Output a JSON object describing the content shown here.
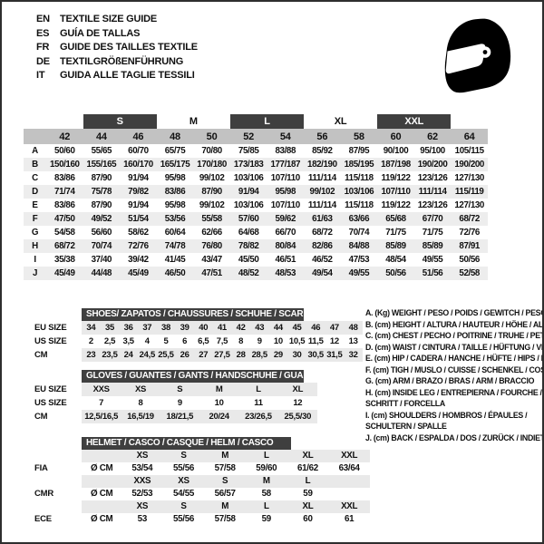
{
  "header": {
    "languages": [
      {
        "code": "EN",
        "text": "TEXTILE SIZE GUIDE"
      },
      {
        "code": "ES",
        "text": "GUÍA DE TALLAS"
      },
      {
        "code": "FR",
        "text": "GUIDE DES TAILLES TEXTILE"
      },
      {
        "code": "DE",
        "text": "TEXTILGRÖßENFÜHRUNG"
      },
      {
        "code": "IT",
        "text": "GUIDA ALLE TAGLIE TESSILI"
      }
    ],
    "icon": "racing-helmet"
  },
  "colors": {
    "bar_bg": "#3f3f3f",
    "bar_text": "#ffffff",
    "size_row_bg": "#c2c2c2",
    "stripe_bg": "#ededed",
    "shade_bg": "#e9e9e9",
    "text": "#111111",
    "border": "#2e2e2e"
  },
  "main_table": {
    "group_headers": [
      {
        "label": "",
        "dark": false,
        "span": 2
      },
      {
        "label": "S",
        "dark": true,
        "span": 2
      },
      {
        "label": "M",
        "dark": false,
        "span": 2
      },
      {
        "label": "L",
        "dark": true,
        "span": 2
      },
      {
        "label": "XL",
        "dark": false,
        "span": 2
      },
      {
        "label": "XXL",
        "dark": true,
        "span": 2
      },
      {
        "label": "",
        "dark": false,
        "span": 1
      }
    ],
    "sizes": [
      "42",
      "44",
      "46",
      "48",
      "50",
      "52",
      "54",
      "56",
      "58",
      "60",
      "62",
      "64"
    ],
    "rows": [
      {
        "label": "A",
        "values": [
          "50/60",
          "55/65",
          "60/70",
          "65/75",
          "70/80",
          "75/85",
          "83/88",
          "85/92",
          "87/95",
          "90/100",
          "95/100",
          "105/115"
        ]
      },
      {
        "label": "B",
        "values": [
          "150/160",
          "155/165",
          "160/170",
          "165/175",
          "170/180",
          "173/183",
          "177/187",
          "182/190",
          "185/195",
          "187/198",
          "190/200",
          "190/200"
        ]
      },
      {
        "label": "C",
        "values": [
          "83/86",
          "87/90",
          "91/94",
          "95/98",
          "99/102",
          "103/106",
          "107/110",
          "111/114",
          "115/118",
          "119/122",
          "123/126",
          "127/130"
        ]
      },
      {
        "label": "D",
        "values": [
          "71/74",
          "75/78",
          "79/82",
          "83/86",
          "87/90",
          "91/94",
          "95/98",
          "99/102",
          "103/106",
          "107/110",
          "111/114",
          "115/119"
        ]
      },
      {
        "label": "E",
        "values": [
          "83/86",
          "87/90",
          "91/94",
          "95/98",
          "99/102",
          "103/106",
          "107/110",
          "111/114",
          "115/118",
          "119/122",
          "123/126",
          "127/130"
        ]
      },
      {
        "label": "F",
        "values": [
          "47/50",
          "49/52",
          "51/54",
          "53/56",
          "55/58",
          "57/60",
          "59/62",
          "61/63",
          "63/66",
          "65/68",
          "67/70",
          "68/72"
        ]
      },
      {
        "label": "G",
        "values": [
          "54/58",
          "56/60",
          "58/62",
          "60/64",
          "62/66",
          "64/68",
          "66/70",
          "68/72",
          "70/74",
          "71/75",
          "71/75",
          "72/76"
        ]
      },
      {
        "label": "H",
        "values": [
          "68/72",
          "70/74",
          "72/76",
          "74/78",
          "76/80",
          "78/82",
          "80/84",
          "82/86",
          "84/88",
          "85/89",
          "85/89",
          "87/91"
        ]
      },
      {
        "label": "I",
        "values": [
          "35/38",
          "37/40",
          "39/42",
          "41/45",
          "43/47",
          "45/50",
          "46/51",
          "46/52",
          "47/53",
          "48/54",
          "49/55",
          "50/56"
        ]
      },
      {
        "label": "J",
        "values": [
          "45/49",
          "44/48",
          "45/49",
          "46/50",
          "47/51",
          "48/52",
          "48/53",
          "49/54",
          "49/55",
          "50/56",
          "51/56",
          "52/58"
        ]
      }
    ]
  },
  "shoes_table": {
    "title": "SHOES/ ZAPATOS / CHAUSSURES / SCHUHE / SCARPE",
    "rows": [
      {
        "label": "EU SIZE",
        "shaded": true,
        "values": [
          "34",
          "35",
          "36",
          "37",
          "38",
          "39",
          "40",
          "41",
          "42",
          "43",
          "44",
          "45",
          "46",
          "47",
          "48"
        ]
      },
      {
        "label": "US SIZE",
        "shaded": false,
        "values": [
          "2",
          "2,5",
          "3,5",
          "4",
          "5",
          "6",
          "6,5",
          "7,5",
          "8",
          "9",
          "10",
          "10,5",
          "11,5",
          "12",
          "13"
        ]
      },
      {
        "label": "CM",
        "shaded": true,
        "values": [
          "23",
          "23,5",
          "24",
          "24,5",
          "25,5",
          "26",
          "27",
          "27,5",
          "28",
          "28,5",
          "29",
          "30",
          "30,5",
          "31,5",
          "32"
        ]
      }
    ]
  },
  "gloves_table": {
    "title": "GLOVES / GUANTES / GANTS / HANDSCHUHE / GUANTI",
    "rows": [
      {
        "label": "EU SIZE",
        "shaded": true,
        "values": [
          "XXS",
          "XS",
          "S",
          "M",
          "L",
          "XL"
        ]
      },
      {
        "label": "US SIZE",
        "shaded": false,
        "values": [
          "7",
          "8",
          "9",
          "10",
          "11",
          "12"
        ]
      },
      {
        "label": "CM",
        "shaded": true,
        "values": [
          "12,5/16,5",
          "16,5/19",
          "18/21,5",
          "20/24",
          "23/26,5",
          "25,5/30"
        ]
      }
    ]
  },
  "helmet_table": {
    "title": "HELMET / CASCO / CASQUE / HELM / CASCO",
    "standards": [
      {
        "label": "FIA",
        "prefix": "Ø CM",
        "sizes": [
          "XS",
          "S",
          "M",
          "L",
          "XL",
          "XXL"
        ],
        "values": [
          "53/54",
          "55/56",
          "57/58",
          "59/60",
          "61/62",
          "63/64"
        ]
      },
      {
        "label": "CMR",
        "prefix": "Ø CM",
        "sizes": [
          "XXS",
          "XS",
          "S",
          "M",
          "L",
          ""
        ],
        "values": [
          "52/53",
          "54/55",
          "56/57",
          "58",
          "59",
          ""
        ]
      },
      {
        "label": "ECE",
        "prefix": "Ø CM",
        "sizes": [
          "XS",
          "S",
          "M",
          "L",
          "XL",
          "XXL"
        ],
        "values": [
          "53",
          "55/56",
          "57/58",
          "59",
          "60",
          "61"
        ]
      }
    ]
  },
  "legend": {
    "items": [
      {
        "lines": [
          "A. (Kg) WEIGHT / PESO / POIDS / GEWITCH / PESO"
        ]
      },
      {
        "lines": [
          "B. (cm) HEIGHT / ALTURA / HAUTEUR / HÖHE / ALTEZZA"
        ]
      },
      {
        "lines": [
          "C. (cm) CHEST / PECHO / POITRINE / TRUHE / PETTO"
        ]
      },
      {
        "lines": [
          "D. (cm) WAIST / CINTURA / TAILLE / HÜFTUNG / VITA"
        ]
      },
      {
        "lines": [
          "E. (cm) HIP / CADERA / HANCHE / HÜFTE / HIPS /  BACINO"
        ]
      },
      {
        "lines": [
          "F. (cm) TIGH / MUSLO / CUISSE / SCHENKEL / COSCIA"
        ]
      },
      {
        "lines": [
          "G. (cm) ARM  / BRAZO / BRAS / ARM / BRACCIO"
        ]
      },
      {
        "lines": [
          "H. (cm) INSIDE LEG / ENTREPIERNA / FOURCHE /",
          "SCHRITT / FORCELLA"
        ]
      },
      {
        "lines": [
          "I.  (cm) SHOULDERS / HOMBROS / ÉPAULES /",
          "SCHULTERN / SPALLE"
        ]
      },
      {
        "lines": [
          "J. (cm) BACK / ESPALDA / DOS / ZURÜCK / INDIETRO"
        ]
      }
    ]
  }
}
